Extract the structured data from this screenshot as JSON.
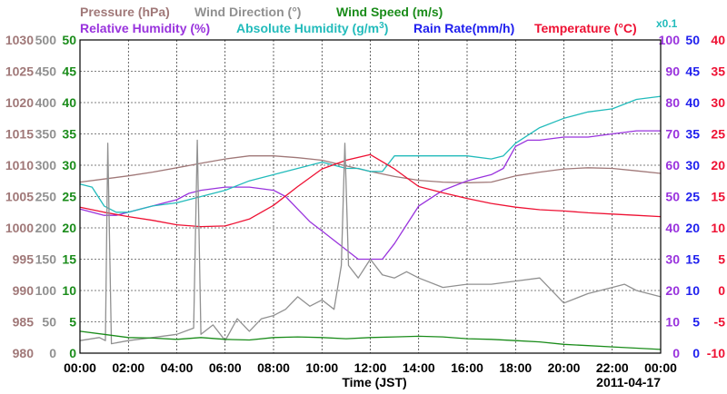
{
  "chart_data": {
    "type": "line",
    "date_label": "2011-04-17",
    "xlabel": "Time (JST)",
    "x_ticks": [
      "00:00",
      "02:00",
      "04:00",
      "06:00",
      "08:00",
      "10:00",
      "12:00",
      "14:00",
      "16:00",
      "18:00",
      "20:00",
      "22:00",
      "00:00"
    ],
    "xlim_hours": [
      0,
      24
    ],
    "grid": true,
    "legend": {
      "row1": [
        {
          "text": "Pressure (hPa)",
          "color": "#a07878"
        },
        {
          "text": "Wind Direction (°)",
          "color": "#909090"
        },
        {
          "text": "Wind Speed (m/s)",
          "color": "#1a8c1a"
        }
      ],
      "row2": [
        {
          "text": "Relative Humidity (%)",
          "color": "#9933dd"
        },
        {
          "text": "Absolute Humidity (g/m",
          "sup": "3",
          "close": ")",
          "color": "#22bbbb"
        },
        {
          "text": "Rain Rate(mm/h)",
          "color": "#2020ee"
        },
        {
          "text": "Temperature (°C)",
          "color": "#ee1133"
        }
      ],
      "scale_note": {
        "text": "x0.1",
        "color": "#22bbbb"
      }
    },
    "axes": {
      "pressure": {
        "color": "#a07878",
        "range": [
          980,
          1030
        ],
        "ticks": [
          "1030",
          "1025",
          "1020",
          "1015",
          "1010",
          "1005",
          "1000",
          "995",
          "990",
          "985",
          "980"
        ]
      },
      "wind_direction": {
        "color": "#909090",
        "range": [
          0,
          500
        ],
        "ticks": [
          "500",
          "450",
          "400",
          "350",
          "300",
          "250",
          "200",
          "150",
          "100",
          "50",
          "0"
        ]
      },
      "wind_speed": {
        "color": "#1a8c1a",
        "range": [
          0,
          50
        ],
        "ticks": [
          "50",
          "45",
          "40",
          "35",
          "30",
          "25",
          "20",
          "15",
          "10",
          "5",
          "0"
        ]
      },
      "humidity": {
        "color": "#9933dd",
        "range": [
          0,
          100
        ],
        "ticks": [
          "100",
          "90",
          "80",
          "70",
          "60",
          "50",
          "40",
          "30",
          "20",
          "10",
          "0"
        ]
      },
      "rain_rate": {
        "color": "#2020ee",
        "range": [
          0,
          50
        ],
        "ticks": [
          "50",
          "45",
          "40",
          "35",
          "30",
          "25",
          "20",
          "15",
          "10",
          "5",
          "0"
        ]
      },
      "temperature": {
        "color": "#ee1133",
        "range": [
          -10,
          40
        ],
        "ticks": [
          "40",
          "35",
          "30",
          "25",
          "20",
          "15",
          "10",
          "5",
          "0",
          "-5",
          "-10"
        ]
      }
    },
    "series": [
      {
        "name": "Pressure (hPa)",
        "axis": "pressure",
        "color": "#a07878",
        "x": [
          0,
          1,
          2,
          3,
          4,
          5,
          6,
          7,
          8,
          9,
          10,
          11,
          12,
          13,
          14,
          15,
          16,
          17,
          18,
          19,
          20,
          21,
          22,
          23,
          24
        ],
        "y": [
          1007.3,
          1007.8,
          1008.3,
          1008.9,
          1009.6,
          1010.3,
          1011.0,
          1011.5,
          1011.5,
          1011.2,
          1010.8,
          1009.9,
          1009.0,
          1008.2,
          1007.6,
          1007.3,
          1007.2,
          1007.3,
          1008.3,
          1008.9,
          1009.4,
          1009.6,
          1009.5,
          1009.1,
          1008.7
        ]
      },
      {
        "name": "Relative Humidity (%)",
        "axis": "humidity",
        "color": "#9933dd",
        "x": [
          0,
          0.5,
          1,
          1.5,
          2,
          2.5,
          3,
          3.5,
          4,
          4.5,
          5,
          6,
          7,
          8,
          8.5,
          9,
          9.5,
          10,
          10.5,
          11,
          11.5,
          12,
          12.5,
          13,
          13.5,
          14,
          15,
          16,
          16.5,
          17,
          17.5,
          18,
          18.5,
          19,
          20,
          21,
          22,
          23,
          24
        ],
        "y": [
          46,
          45,
          44,
          44,
          45,
          46,
          47,
          48,
          49,
          51,
          52,
          53,
          53,
          52,
          50,
          46,
          42,
          39,
          36,
          33,
          30,
          30,
          30,
          35,
          41,
          47,
          52,
          55,
          56,
          57,
          59,
          66,
          68,
          68,
          69,
          69,
          70,
          71,
          71
        ]
      },
      {
        "name": "Absolute Humidity (g/m3)",
        "axis": "humidity",
        "color": "#22bbbb",
        "x": [
          0,
          0.5,
          1,
          1.5,
          2,
          3,
          4,
          5,
          6,
          7,
          8,
          9,
          10,
          10.5,
          11,
          11.5,
          12,
          12.5,
          13,
          14,
          15,
          16,
          17,
          17.5,
          18,
          19,
          20,
          21,
          22,
          23,
          24
        ],
        "y": [
          54,
          53,
          47,
          45,
          45,
          47,
          48,
          50,
          52,
          55,
          57,
          59,
          61,
          60,
          59,
          59,
          58,
          58,
          63,
          63,
          63,
          63,
          62,
          63,
          67,
          72,
          75,
          77,
          78,
          81,
          82
        ]
      },
      {
        "name": "Temperature (°C)",
        "axis": "temperature",
        "color": "#ee1133",
        "x": [
          0,
          1,
          2,
          3,
          4,
          5,
          6,
          7,
          8,
          9,
          10,
          11,
          12,
          13,
          14,
          15,
          16,
          17,
          18,
          19,
          20,
          21,
          22,
          23,
          24
        ],
        "y": [
          13.3,
          12.5,
          11.8,
          11.2,
          10.5,
          10.2,
          10.3,
          11.4,
          13.6,
          16.6,
          19.4,
          20.8,
          21.7,
          19.4,
          16.6,
          15.6,
          14.7,
          13.9,
          13.3,
          12.9,
          12.7,
          12.4,
          12.2,
          12.0,
          11.8
        ]
      },
      {
        "name": "Wind Direction (°)",
        "axis": "wind_direction",
        "color": "#909090",
        "x": [
          0,
          0.8,
          1.05,
          1.15,
          1.3,
          2,
          3,
          4,
          4.7,
          4.85,
          5,
          5.5,
          6,
          6.5,
          7,
          7.5,
          8,
          8.5,
          9,
          9.5,
          10,
          10.5,
          10.8,
          10.95,
          11.1,
          11.5,
          12,
          12.5,
          13,
          13.5,
          14,
          15,
          16,
          17,
          18,
          19,
          20,
          21,
          22,
          22.5,
          23,
          24
        ],
        "y": [
          20,
          25,
          20,
          335,
          15,
          20,
          25,
          30,
          40,
          340,
          30,
          45,
          20,
          55,
          35,
          55,
          60,
          70,
          90,
          75,
          85,
          70,
          140,
          335,
          140,
          120,
          150,
          125,
          120,
          130,
          120,
          105,
          110,
          110,
          115,
          120,
          80,
          95,
          105,
          110,
          100,
          90
        ]
      },
      {
        "name": "Wind Speed (m/s)",
        "axis": "wind_speed",
        "color": "#1a8c1a",
        "x": [
          0,
          1,
          2,
          3,
          4,
          5,
          6,
          7,
          8,
          9,
          10,
          11,
          12,
          13,
          14,
          15,
          16,
          17,
          18,
          19,
          20,
          21,
          22,
          23,
          24
        ],
        "y": [
          3.5,
          3.0,
          2.5,
          2.4,
          2.2,
          2.5,
          2.2,
          2.1,
          2.5,
          2.6,
          2.5,
          2.3,
          2.5,
          2.6,
          2.7,
          2.6,
          2.3,
          2.2,
          2.0,
          1.8,
          1.4,
          1.2,
          1.0,
          0.8,
          0.6
        ]
      }
    ]
  }
}
